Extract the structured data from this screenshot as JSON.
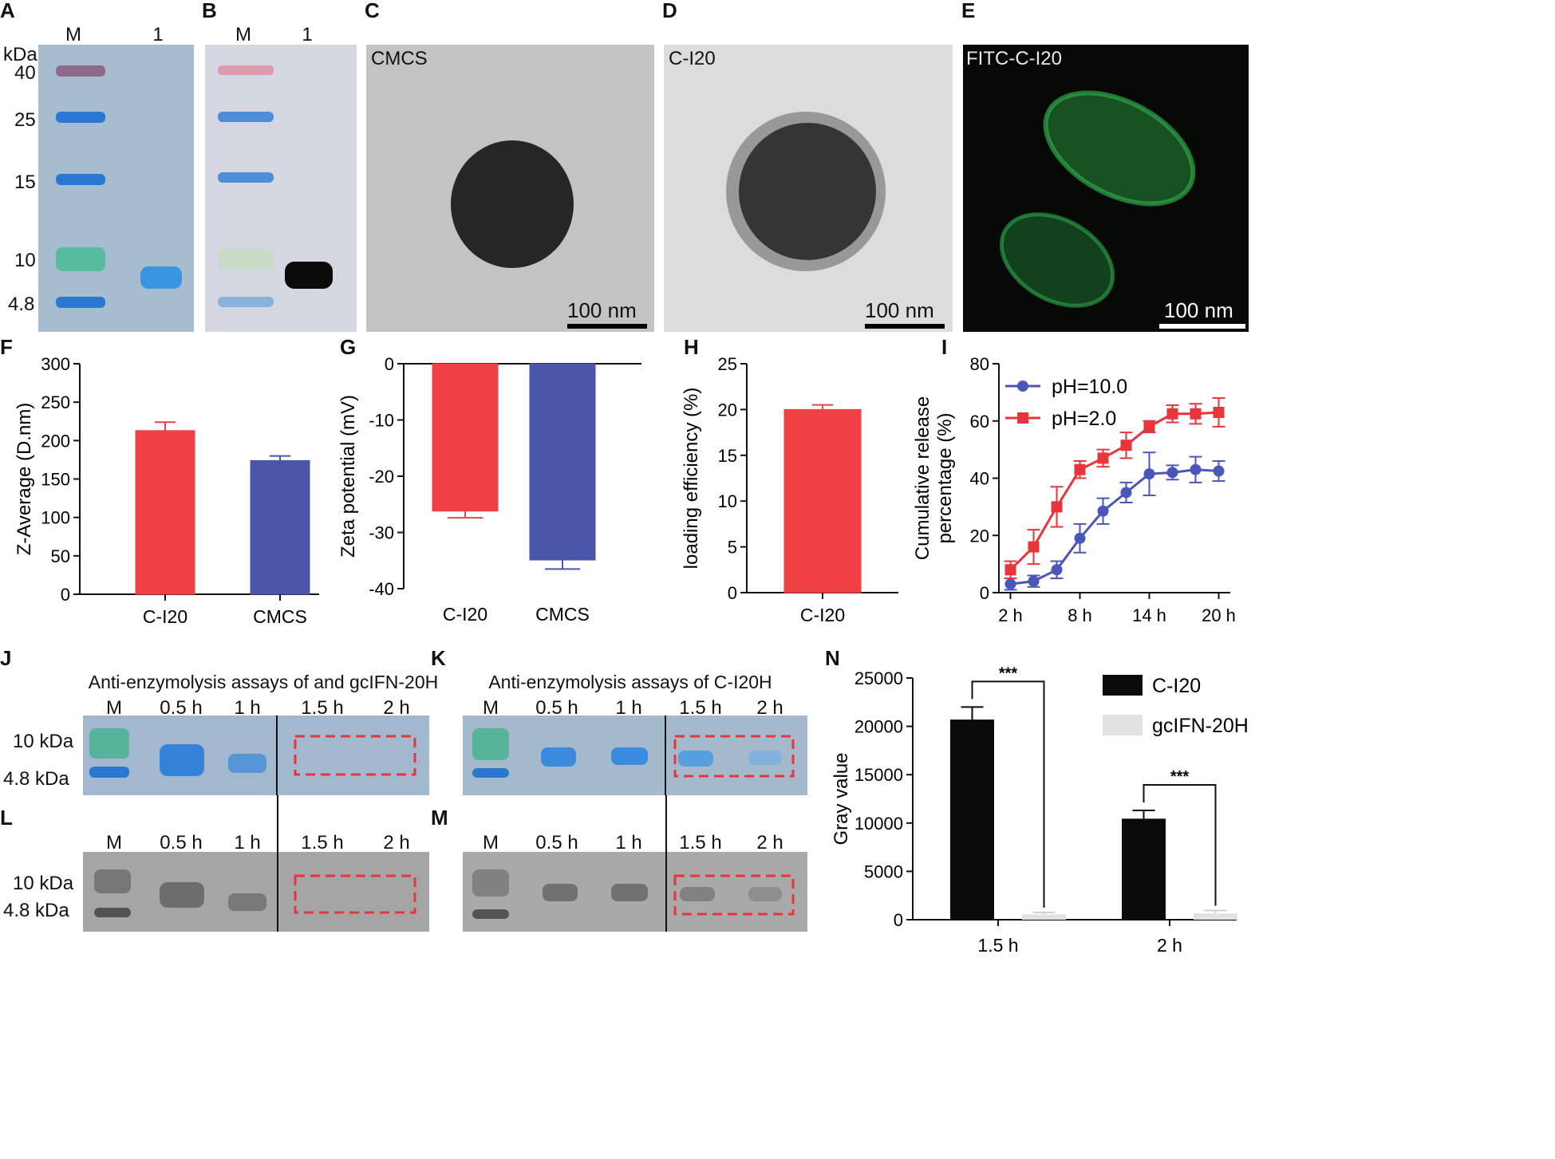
{
  "panels": {
    "A": {
      "letter": "A",
      "lanes": [
        "M",
        "1"
      ],
      "unit": "kDa",
      "markers": [
        "40",
        "25",
        "15",
        "10",
        "4.8"
      ]
    },
    "B": {
      "letter": "B",
      "lanes": [
        "M",
        "1"
      ]
    },
    "C": {
      "letter": "C",
      "label": "CMCS",
      "scale": "100 nm"
    },
    "D": {
      "letter": "D",
      "label": "C-I20",
      "scale": "100 nm"
    },
    "E": {
      "letter": "E",
      "label": "FITC-C-I20",
      "scale": "100 nm"
    },
    "J": {
      "letter": "J",
      "title": "Anti-enzymolysis assays of and gcIFN-20H",
      "lanes": [
        "M",
        "0.5 h",
        "1 h",
        "1.5 h",
        "2 h"
      ],
      "markers": [
        "10 kDa",
        "4.8 kDa"
      ]
    },
    "K": {
      "letter": "K",
      "title": "Anti-enzymolysis assays of C-I20H",
      "lanes": [
        "M",
        "0.5 h",
        "1 h",
        "1.5 h",
        "2 h"
      ]
    },
    "L": {
      "letter": "L",
      "lanes": [
        "M",
        "0.5 h",
        "1 h",
        "1.5 h",
        "2 h"
      ],
      "markers": [
        "10 kDa",
        "4.8 kDa"
      ]
    },
    "M": {
      "letter": "M",
      "lanes": [
        "M",
        "0.5 h",
        "1 h",
        "1.5 h",
        "2 h"
      ]
    }
  },
  "chart_data": [
    {
      "id": "F",
      "letter": "F",
      "type": "bar",
      "categories": [
        "C-I20",
        "CMCS"
      ],
      "values": [
        213,
        174
      ],
      "errors": [
        11,
        6
      ],
      "ylabel": "Z-Average (D.nm)",
      "ylim": [
        0,
        300
      ],
      "yticks": [
        0,
        50,
        100,
        150,
        200,
        250,
        300
      ],
      "colors": [
        "#ef4044",
        "#4a57a8"
      ]
    },
    {
      "id": "G",
      "letter": "G",
      "type": "bar",
      "categories": [
        "C-I20",
        "CMCS"
      ],
      "values": [
        -26.2,
        -34.9
      ],
      "errors": [
        1.2,
        1.6
      ],
      "ylabel": "Zeta potential (mV)",
      "ylim": [
        -40,
        0
      ],
      "yticks": [
        0,
        -10,
        -20,
        -30,
        -40
      ],
      "colors": [
        "#ef4044",
        "#4a57a8"
      ]
    },
    {
      "id": "H",
      "letter": "H",
      "type": "bar",
      "categories": [
        "C-I20"
      ],
      "values": [
        20.0
      ],
      "errors": [
        0.5
      ],
      "ylabel": "loading efficiency (%)",
      "ylim": [
        0,
        25
      ],
      "yticks": [
        0,
        5,
        10,
        15,
        20,
        25
      ],
      "colors": [
        "#ef4044"
      ]
    },
    {
      "id": "I",
      "letter": "I",
      "type": "line",
      "x": [
        2,
        4,
        6,
        8,
        10,
        12,
        14,
        16,
        18,
        20
      ],
      "xticks": [
        "2 h",
        "8 h",
        "14 h",
        "20 h"
      ],
      "ylabel": "Cumulative release percentage (%)",
      "ylim": [
        0,
        80
      ],
      "yticks": [
        0,
        20,
        40,
        60,
        80
      ],
      "legend": "top-left",
      "series": [
        {
          "name": "pH=10.0",
          "color": "#4a57b8",
          "marker": "circle",
          "values": [
            3,
            4,
            8,
            19,
            28.5,
            35,
            41.5,
            42,
            43,
            42.5
          ],
          "errors": [
            2,
            2,
            3,
            5,
            4.5,
            3.5,
            7.5,
            2.5,
            4.5,
            3.5
          ]
        },
        {
          "name": "pH=2.0",
          "color": "#e8353b",
          "marker": "square",
          "values": [
            8,
            16,
            30,
            43,
            47,
            51.5,
            58,
            62.5,
            62.5,
            63
          ],
          "errors": [
            3,
            6,
            7,
            3,
            3,
            4.5,
            2,
            3,
            3.5,
            5
          ]
        }
      ]
    },
    {
      "id": "N",
      "letter": "N",
      "type": "bar",
      "categories": [
        "1.5 h",
        "2 h"
      ],
      "ylabel": "Gray value",
      "ylim": [
        0,
        25000
      ],
      "yticks": [
        0,
        5000,
        10000,
        15000,
        20000,
        25000
      ],
      "legend": "top-right",
      "series": [
        {
          "name": "C-I20",
          "color": "#0a0a0a",
          "values": [
            20700,
            10450
          ],
          "errors": [
            1300,
            850
          ]
        },
        {
          "name": "gcIFN-20H",
          "color": "#e2e2e2",
          "values": [
            550,
            650
          ],
          "errors": [
            200,
            300
          ]
        }
      ],
      "annotations": [
        "***",
        "***"
      ]
    }
  ]
}
